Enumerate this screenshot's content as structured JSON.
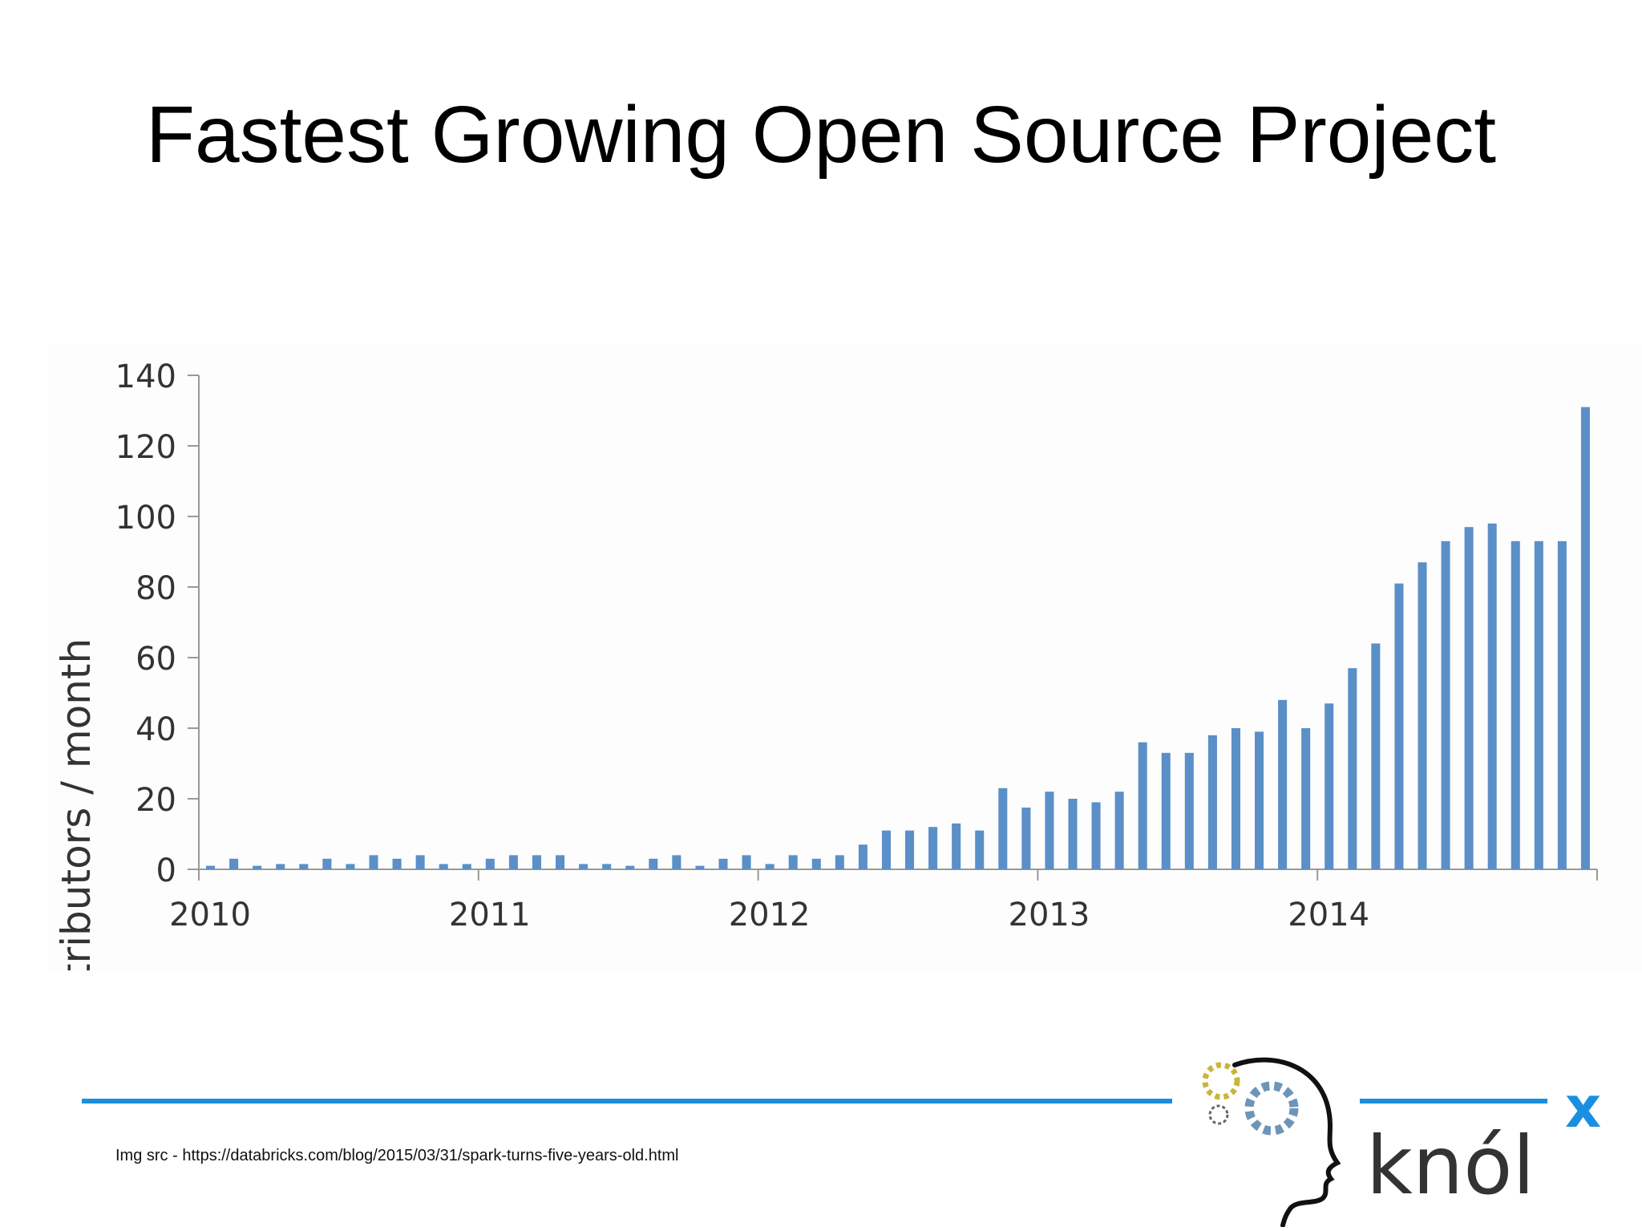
{
  "slide": {
    "title": "Fastest Growing Open Source Project",
    "source": "Img src - https://databricks.com/blog/2015/03/31/spark-turns-five-years-old.html"
  },
  "logo": {
    "text": "knól",
    "superscript": "x",
    "icon": "knolx-head-gears-logo"
  },
  "colors": {
    "bar": "#5b8fc7",
    "rule": "#1a8fe0",
    "logo_text": "#333333",
    "logo_accent": "#1a8fe0"
  },
  "chart_data": {
    "type": "bar",
    "title": "",
    "xlabel": "",
    "ylabel": "Contributors / month",
    "ylim": [
      0,
      140
    ],
    "yticks": [
      0,
      20,
      40,
      60,
      80,
      100,
      120,
      140
    ],
    "x_tick_labels": [
      "2010",
      "2011",
      "2012",
      "2013",
      "2014"
    ],
    "grid": false,
    "x_start": "2010-01",
    "months": [
      "2010-01",
      "2010-02",
      "2010-03",
      "2010-04",
      "2010-05",
      "2010-06",
      "2010-07",
      "2010-08",
      "2010-09",
      "2010-10",
      "2010-11",
      "2010-12",
      "2011-01",
      "2011-02",
      "2011-03",
      "2011-04",
      "2011-05",
      "2011-06",
      "2011-07",
      "2011-08",
      "2011-09",
      "2011-10",
      "2011-11",
      "2011-12",
      "2012-01",
      "2012-02",
      "2012-03",
      "2012-04",
      "2012-05",
      "2012-06",
      "2012-07",
      "2012-08",
      "2012-09",
      "2012-10",
      "2012-11",
      "2012-12",
      "2013-01",
      "2013-02",
      "2013-03",
      "2013-04",
      "2013-05",
      "2013-06",
      "2013-07",
      "2013-08",
      "2013-09",
      "2013-10",
      "2013-11",
      "2013-12",
      "2014-01",
      "2014-02",
      "2014-03",
      "2014-04",
      "2014-05",
      "2014-06",
      "2014-07",
      "2014-08",
      "2014-09",
      "2014-10",
      "2014-11",
      "2014-12"
    ],
    "values": [
      1,
      3,
      1,
      1.5,
      1.5,
      3,
      1.5,
      4,
      3,
      4,
      1.5,
      1.5,
      3,
      4,
      4,
      4,
      1.5,
      1.5,
      1,
      3,
      4,
      1,
      3,
      4,
      1.5,
      4,
      3,
      4,
      7,
      11,
      11,
      12,
      13,
      11,
      23,
      17.5,
      22,
      20,
      19,
      22,
      36,
      33,
      33,
      38,
      40,
      39,
      48,
      40,
      47,
      57,
      64,
      81,
      87,
      93,
      97,
      98,
      93,
      93,
      93,
      131
    ]
  }
}
